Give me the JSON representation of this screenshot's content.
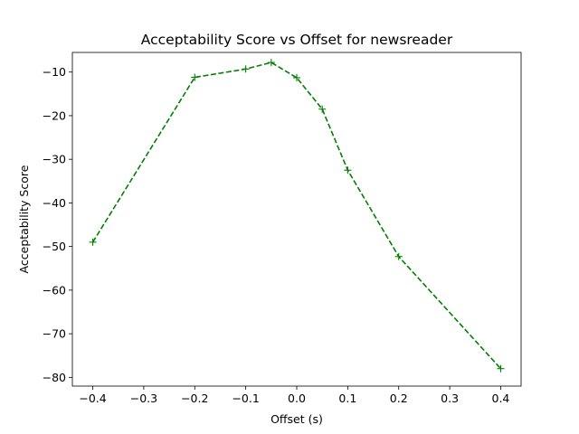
{
  "chart_data": {
    "type": "line",
    "title": "Acceptability Score vs Offset for newsreader",
    "xlabel": "Offset (s)",
    "ylabel": "Acceptability Score",
    "xlim": [
      -0.44,
      0.44
    ],
    "ylim": [
      -82,
      -5.5
    ],
    "xticks": [
      -0.4,
      -0.3,
      -0.2,
      -0.1,
      0.0,
      0.1,
      0.2,
      0.3,
      0.4
    ],
    "xtick_labels": [
      "−0.4",
      "−0.3",
      "−0.2",
      "−0.1",
      "0.0",
      "0.1",
      "0.2",
      "0.3",
      "0.4"
    ],
    "yticks": [
      -10,
      -20,
      -30,
      -40,
      -50,
      -60,
      -70,
      -80
    ],
    "ytick_labels": [
      "−10",
      "−20",
      "−30",
      "−40",
      "−50",
      "−60",
      "−70",
      "−80"
    ],
    "grid": false,
    "series": [
      {
        "color": "#008000",
        "line_style": "dashed",
        "marker": "plus",
        "x": [
          -0.4,
          -0.2,
          -0.1,
          -0.05,
          0.0,
          0.05,
          0.1,
          0.2,
          0.4
        ],
        "y": [
          -49.0,
          -11.2,
          -9.3,
          -7.8,
          -11.3,
          -18.5,
          -32.5,
          -52.3,
          -78.0
        ]
      }
    ]
  }
}
